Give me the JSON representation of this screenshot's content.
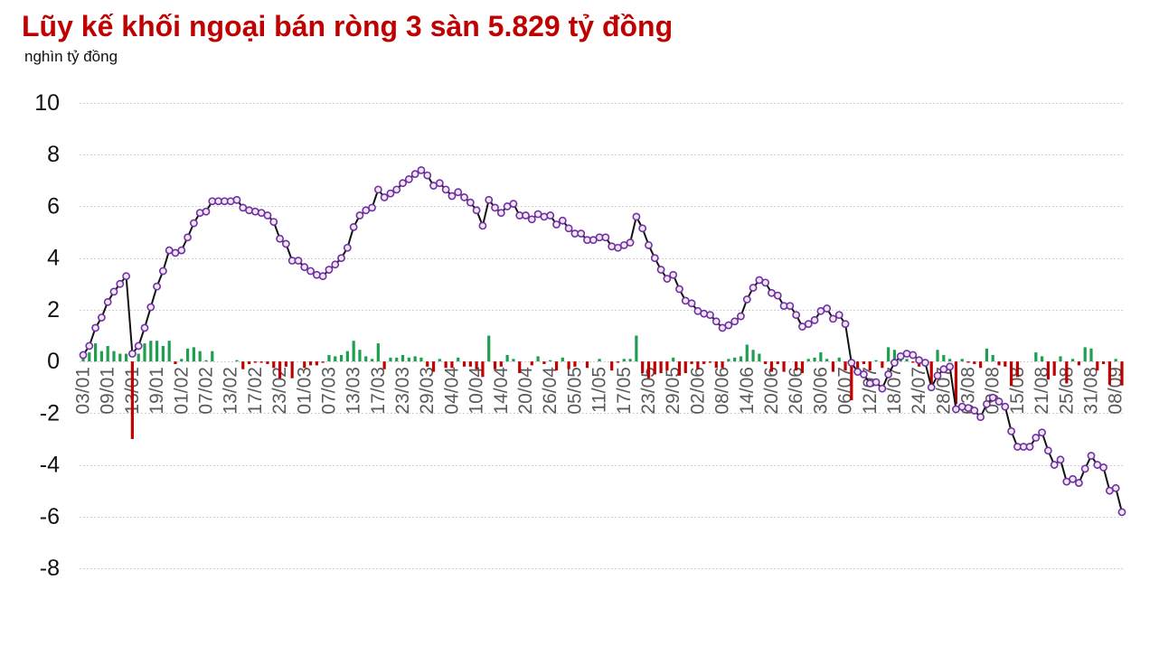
{
  "chart_data": {
    "type": [
      "line",
      "bar"
    ],
    "title": "Lũy kế khối ngoại bán ròng 3 sàn 5.829 tỷ đồng",
    "ylabel": "nghìn tỷ đồng",
    "ylim": [
      -8,
      10
    ],
    "yticks": [
      10,
      8,
      6,
      4,
      2,
      0,
      -2,
      -4,
      -6,
      -8
    ],
    "grid": true,
    "x_tick_step": 4,
    "x_tick_labels": [
      "03/01",
      "09/01",
      "13/01",
      "19/01",
      "01/02",
      "07/02",
      "13/02",
      "17/02",
      "23/02",
      "01/03",
      "07/03",
      "13/03",
      "17/03",
      "23/03",
      "29/03",
      "04/04",
      "10/04",
      "14/04",
      "20/04",
      "26/04",
      "05/05",
      "11/05",
      "17/05",
      "23/05",
      "29/05",
      "02/06",
      "08/06",
      "14/06",
      "20/06",
      "26/06",
      "30/06",
      "06/07",
      "12/07",
      "18/07",
      "24/07",
      "28/07",
      "03/08",
      "09/08",
      "15/08",
      "21/08",
      "25/08",
      "31/08",
      "08/09"
    ],
    "cumulative": [
      0.25,
      0.6,
      1.3,
      1.7,
      2.3,
      2.7,
      3.0,
      3.3,
      0.3,
      0.6,
      1.3,
      2.1,
      2.9,
      3.5,
      4.3,
      4.2,
      4.3,
      4.8,
      5.35,
      5.75,
      5.8,
      6.2,
      6.2,
      6.2,
      6.2,
      6.25,
      5.95,
      5.85,
      5.8,
      5.75,
      5.65,
      5.4,
      4.75,
      4.55,
      3.9,
      3.9,
      3.65,
      3.5,
      3.35,
      3.3,
      3.55,
      3.75,
      4.0,
      4.4,
      5.2,
      5.65,
      5.85,
      5.95,
      6.65,
      6.35,
      6.5,
      6.65,
      6.9,
      7.05,
      7.25,
      7.4,
      7.2,
      6.8,
      6.9,
      6.65,
      6.4,
      6.55,
      6.35,
      6.15,
      5.85,
      5.25,
      6.25,
      5.95,
      5.75,
      6.0,
      6.1,
      5.65,
      5.65,
      5.5,
      5.7,
      5.6,
      5.65,
      5.3,
      5.45,
      5.15,
      4.95,
      4.95,
      4.7,
      4.7,
      4.8,
      4.8,
      4.45,
      4.4,
      4.5,
      4.6,
      5.6,
      5.15,
      4.5,
      4.0,
      3.55,
      3.2,
      3.35,
      2.8,
      2.35,
      2.25,
      1.95,
      1.85,
      1.8,
      1.55,
      1.3,
      1.4,
      1.55,
      1.75,
      2.4,
      2.85,
      3.15,
      3.05,
      2.65,
      2.55,
      2.15,
      2.15,
      1.8,
      1.35,
      1.45,
      1.6,
      1.95,
      2.05,
      1.65,
      1.8,
      1.45,
      -0.05,
      -0.4,
      -0.5,
      -0.85,
      -0.8,
      -1.05,
      -0.5,
      -0.05,
      0.2,
      0.3,
      0.25,
      0.05,
      -0.05,
      -1.0,
      -0.55,
      -0.3,
      -0.2,
      -1.85,
      -1.75,
      -1.8,
      -1.9,
      -2.15,
      -1.65,
      -1.4,
      -1.55,
      -1.75,
      -2.7,
      -3.3,
      -3.3,
      -3.3,
      -2.95,
      -2.75,
      -3.45,
      -4.0,
      -3.8,
      -4.65,
      -4.55,
      -4.7,
      -4.15,
      -3.65,
      -4.0,
      -4.1,
      -5.0,
      -4.9,
      -5.83
    ],
    "daily": [
      0.25,
      0.35,
      0.7,
      0.4,
      0.6,
      0.4,
      0.3,
      0.3,
      -3.0,
      0.3,
      0.7,
      0.8,
      0.8,
      0.6,
      0.8,
      -0.1,
      0.1,
      0.5,
      0.55,
      0.4,
      0.05,
      0.4,
      0,
      0,
      0,
      0.05,
      -0.3,
      -0.1,
      -0.05,
      -0.05,
      -0.1,
      -0.25,
      -0.65,
      -0.2,
      -0.65,
      0,
      -0.25,
      -0.15,
      -0.15,
      -0.05,
      0.25,
      0.2,
      0.25,
      0.4,
      0.8,
      0.45,
      0.2,
      0.1,
      0.7,
      -0.3,
      0.15,
      0.15,
      0.25,
      0.15,
      0.2,
      0.15,
      -0.2,
      -0.4,
      0.1,
      -0.25,
      -0.25,
      0.15,
      -0.2,
      -0.2,
      -0.3,
      -0.6,
      1.0,
      -0.3,
      -0.2,
      0.25,
      0.1,
      -0.45,
      0,
      -0.15,
      0.2,
      -0.1,
      0.05,
      -0.35,
      0.15,
      -0.3,
      -0.2,
      0,
      -0.25,
      0,
      0.1,
      0,
      -0.35,
      -0.05,
      0.1,
      0.1,
      1.0,
      -0.45,
      -0.65,
      -0.5,
      -0.45,
      -0.35,
      0.15,
      -0.55,
      -0.45,
      -0.1,
      -0.3,
      -0.1,
      -0.05,
      -0.25,
      -0.25,
      0.1,
      0.15,
      0.2,
      0.65,
      0.45,
      0.3,
      -0.1,
      -0.4,
      -0.1,
      -0.4,
      0,
      -0.35,
      -0.45,
      0.1,
      0.15,
      0.35,
      0.1,
      -0.4,
      0.15,
      -0.35,
      -1.5,
      -0.35,
      -0.1,
      -0.35,
      0.05,
      -0.25,
      0.55,
      0.45,
      0.25,
      0.1,
      -0.05,
      -0.2,
      -0.1,
      -0.95,
      0.45,
      0.25,
      0.1,
      -1.65,
      0.1,
      -0.05,
      -0.1,
      -0.25,
      0.5,
      0.25,
      -0.15,
      -0.2,
      -0.95,
      -0.6,
      0,
      0,
      0.35,
      0.2,
      -0.7,
      -0.55,
      0.2,
      -0.85,
      0.1,
      -0.15,
      0.55,
      0.5,
      -0.35,
      -0.1,
      -0.9,
      0.1,
      -0.93
    ],
    "colors": {
      "title": "#c00000",
      "positive_bar": "#1e9e4f",
      "negative_bar": "#c00000",
      "line": "#111111",
      "marker_stroke": "#7030a0",
      "marker_fill": "#efe6f7"
    }
  }
}
